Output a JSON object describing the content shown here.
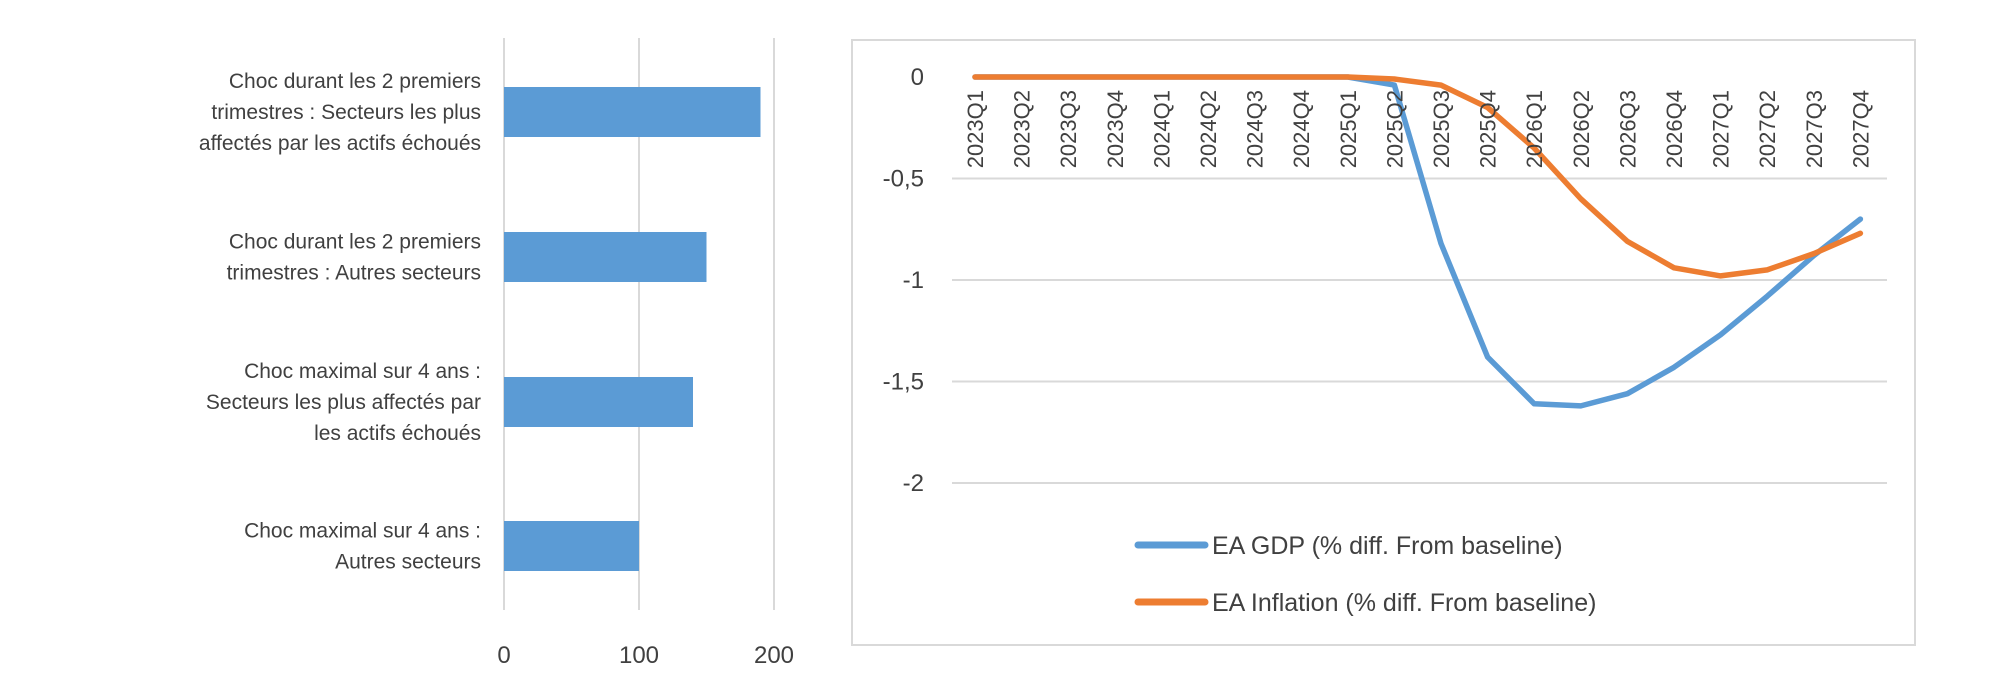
{
  "chart_data": [
    {
      "type": "bar",
      "orientation": "horizontal",
      "categories": [
        [
          "Choc durant les 2 premiers",
          "trimestres : Secteurs les plus",
          "affectés par les actifs échoués"
        ],
        [
          "Choc durant les 2 premiers",
          "trimestres : Autres secteurs"
        ],
        [
          "Choc maximal sur 4 ans :",
          "Secteurs les plus affectés par",
          "les actifs échoués"
        ],
        [
          "Choc maximal sur 4 ans :",
          "Autres secteurs"
        ]
      ],
      "values": [
        190,
        150,
        140,
        100
      ],
      "xlim": [
        0,
        200
      ],
      "xticks": [
        "0",
        "100",
        "200"
      ],
      "color": "#5b9bd5",
      "grid": true
    },
    {
      "type": "line",
      "x": [
        "2023Q1",
        "2023Q2",
        "2023Q3",
        "2023Q4",
        "2024Q1",
        "2024Q2",
        "2024Q3",
        "2024Q4",
        "2025Q1",
        "2025Q2",
        "2025Q3",
        "2025Q4",
        "2026Q1",
        "2026Q2",
        "2026Q3",
        "2026Q4",
        "2027Q1",
        "2027Q2",
        "2027Q3",
        "2027Q4"
      ],
      "ylim": [
        -2,
        0
      ],
      "yticks": [
        "0",
        "-0,5",
        "-1",
        "-1,5",
        "-2"
      ],
      "grid": true,
      "legend_position": "bottom",
      "series": [
        {
          "name": "EA GDP (% diff. From baseline)",
          "color": "#5b9bd5",
          "values": [
            0,
            0,
            0,
            0,
            0,
            0,
            0,
            0,
            0,
            -0.04,
            -0.82,
            -1.38,
            -1.61,
            -1.62,
            -1.56,
            -1.43,
            -1.27,
            -1.08,
            -0.88,
            -0.7
          ]
        },
        {
          "name": "EA Inflation  (% diff. From baseline)",
          "color": "#ed7d31",
          "values": [
            0,
            0,
            0,
            0,
            0,
            0,
            0,
            0,
            0,
            -0.01,
            -0.04,
            -0.15,
            -0.35,
            -0.6,
            -0.81,
            -0.94,
            -0.98,
            -0.95,
            -0.87,
            -0.77
          ]
        }
      ]
    }
  ]
}
